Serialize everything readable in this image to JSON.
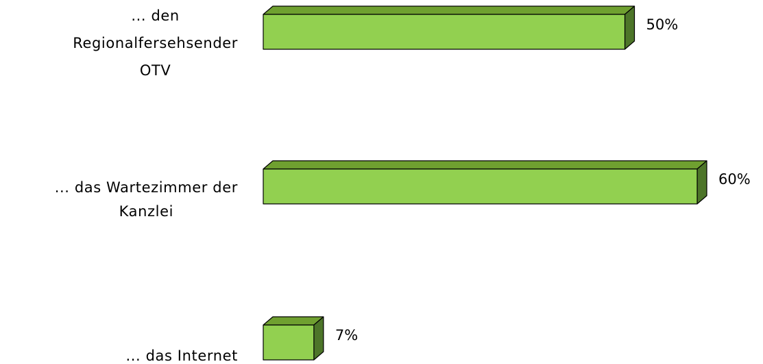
{
  "chart_data": {
    "type": "bar",
    "orientation": "horizontal",
    "style": "3d",
    "categories": [
      [
        "... den",
        "Regionalfersehsender",
        "OTV"
      ],
      [
        "... das Wartezimmer der",
        "Kanzlei"
      ],
      [
        "... das Internet"
      ]
    ],
    "values": [
      50,
      60,
      7
    ],
    "value_labels": [
      "50%",
      "60%",
      "7%"
    ],
    "unit": "%",
    "title": "",
    "xlabel": "",
    "ylabel": "",
    "grid": false,
    "colors": {
      "front": "#92d050",
      "top": "#6fa030",
      "side": "#4d7529",
      "outline": "#000000"
    }
  }
}
